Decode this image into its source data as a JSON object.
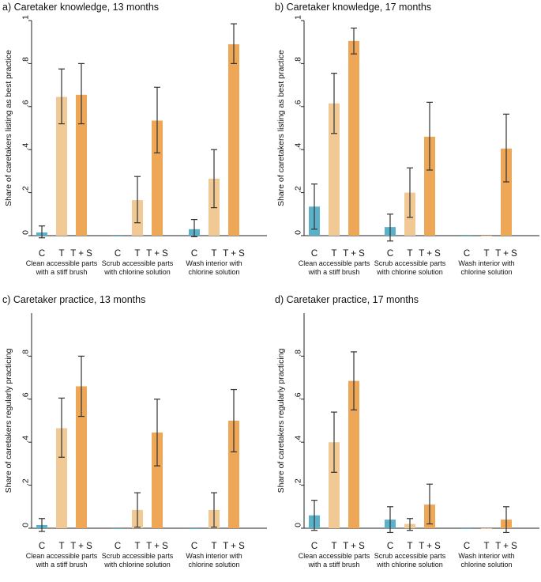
{
  "colors": {
    "C": "#5bb1c9",
    "T": "#f1c994",
    "TS": "#eea657",
    "error": "#333333",
    "axis": "#222222"
  },
  "chart_data": [
    {
      "type": "bar",
      "title": "a) Caretaker knowledge, 13 months",
      "ylabel": "Share of caretakers listing as best practice",
      "ylim": [
        0,
        1
      ],
      "yticks": [
        0,
        0.2,
        0.4,
        0.6,
        0.8,
        1
      ],
      "ytick_labels": [
        "0",
        ".2",
        ".4",
        ".6",
        ".8",
        "1"
      ],
      "series_labels": [
        "C",
        "T",
        "T + S"
      ],
      "groups": [
        {
          "label_line1": "Clean accessible parts",
          "label_line2": "with a stiff brush",
          "values": [
            0.015,
            0.645,
            0.655
          ],
          "ci_low": [
            -0.01,
            0.52,
            0.52
          ],
          "ci_high": [
            0.045,
            0.775,
            0.8
          ]
        },
        {
          "label_line1": "Scrub accessible parts",
          "label_line2": "with chlorine solution",
          "values": [
            0.0,
            0.165,
            0.535
          ],
          "ci_low": [
            0.0,
            0.06,
            0.385
          ],
          "ci_high": [
            0.0,
            0.275,
            0.69
          ]
        },
        {
          "label_line1": "Wash interior with",
          "label_line2": "chlorine solution",
          "values": [
            0.03,
            0.265,
            0.89
          ],
          "ci_low": [
            -0.005,
            0.13,
            0.8
          ],
          "ci_high": [
            0.075,
            0.4,
            0.985
          ]
        }
      ]
    },
    {
      "type": "bar",
      "title": "b) Caretaker knowledge, 17 months",
      "ylabel": "Share of caretakers listing as best practice",
      "ylim": [
        0,
        1
      ],
      "yticks": [
        0,
        0.2,
        0.4,
        0.6,
        0.8,
        1
      ],
      "ytick_labels": [
        "0",
        ".2",
        ".4",
        ".6",
        ".8",
        "1"
      ],
      "series_labels": [
        "C",
        "T",
        "T + S"
      ],
      "groups": [
        {
          "label_line1": "Clean accessible parts",
          "label_line2": "with a stiff brush",
          "values": [
            0.135,
            0.615,
            0.905
          ],
          "ci_low": [
            0.03,
            0.475,
            0.845
          ],
          "ci_high": [
            0.24,
            0.755,
            0.965
          ]
        },
        {
          "label_line1": "Scrub accessible parts",
          "label_line2": "with chlorine solution",
          "values": [
            0.04,
            0.2,
            0.46
          ],
          "ci_low": [
            -0.025,
            0.085,
            0.305
          ],
          "ci_high": [
            0.1,
            0.315,
            0.62
          ]
        },
        {
          "label_line1": "Wash interior with",
          "label_line2": "chlorine solution",
          "values": [
            0.0,
            0.0,
            0.405
          ],
          "ci_low": [
            0.0,
            0.0,
            0.25
          ],
          "ci_high": [
            0.0,
            0.0,
            0.565
          ]
        }
      ]
    },
    {
      "type": "bar",
      "title": "c) Caretaker practice, 13 months",
      "ylabel": "Share of caretakers regularly practicing",
      "ylim": [
        0,
        1
      ],
      "yticks": [
        0,
        0.2,
        0.4,
        0.6,
        0.8
      ],
      "ytick_labels": [
        "0",
        ".2",
        ".4",
        ".6",
        ".8"
      ],
      "series_labels": [
        "C",
        "T",
        "T + S"
      ],
      "groups": [
        {
          "label_line1": "Clean accessible parts",
          "label_line2": "with a stiff brush",
          "values": [
            0.015,
            0.465,
            0.66
          ],
          "ci_low": [
            -0.015,
            0.33,
            0.52
          ],
          "ci_high": [
            0.045,
            0.605,
            0.8
          ]
        },
        {
          "label_line1": "Scrub accessible parts",
          "label_line2": "with chlorine solution",
          "values": [
            0.0,
            0.085,
            0.445
          ],
          "ci_low": [
            0.0,
            0.005,
            0.29
          ],
          "ci_high": [
            0.0,
            0.165,
            0.6
          ]
        },
        {
          "label_line1": "Wash interior with",
          "label_line2": "chlorine solution",
          "values": [
            0.0,
            0.085,
            0.5
          ],
          "ci_low": [
            0.0,
            0.005,
            0.355
          ],
          "ci_high": [
            0.0,
            0.165,
            0.645
          ]
        }
      ]
    },
    {
      "type": "bar",
      "title": "d) Caretaker practice, 17 months",
      "ylabel": "Share of caretakers regularly practicing",
      "ylim": [
        0,
        1
      ],
      "yticks": [
        0,
        0.2,
        0.4,
        0.6,
        0.8
      ],
      "ytick_labels": [
        "0",
        ".2",
        ".4",
        ".6",
        ".8"
      ],
      "series_labels": [
        "C",
        "T",
        "T + S"
      ],
      "groups": [
        {
          "label_line1": "Clean accessible parts",
          "label_line2": "with a stiff brush",
          "values": [
            0.06,
            0.4,
            0.685
          ],
          "ci_low": [
            -0.01,
            0.26,
            0.55
          ],
          "ci_high": [
            0.13,
            0.54,
            0.82
          ]
        },
        {
          "label_line1": "Scrub accessible parts",
          "label_line2": "with chlorine solution",
          "values": [
            0.04,
            0.02,
            0.11
          ],
          "ci_low": [
            -0.02,
            -0.01,
            0.02
          ],
          "ci_high": [
            0.1,
            0.045,
            0.205
          ]
        },
        {
          "label_line1": "Wash interior with",
          "label_line2": "chlorine solution",
          "values": [
            0.0,
            0.0,
            0.04
          ],
          "ci_low": [
            0.0,
            0.0,
            -0.02
          ],
          "ci_high": [
            0.0,
            0.0,
            0.1
          ]
        }
      ]
    }
  ]
}
